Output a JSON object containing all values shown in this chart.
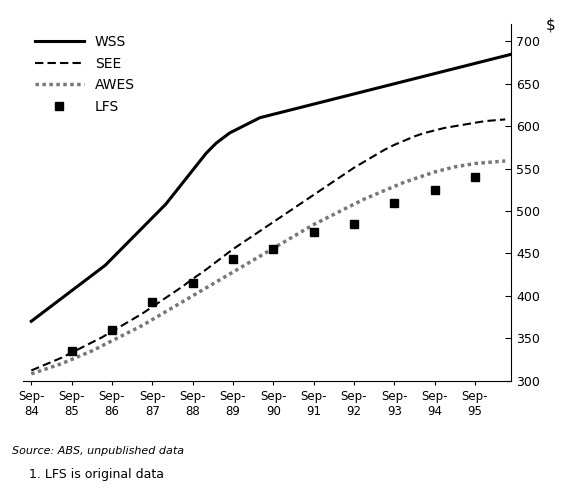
{
  "ylabel_right": "$",
  "ylim": [
    300,
    720
  ],
  "yticks": [
    300,
    350,
    400,
    450,
    500,
    550,
    600,
    650,
    700
  ],
  "x_labels": [
    "Sep-\n84",
    "Sep-\n85",
    "Sep-\n86",
    "Sep-\n87",
    "Sep-\n88",
    "Sep-\n89",
    "Sep-\n90",
    "Sep-\n91",
    "Sep-\n92",
    "Sep-\n93",
    "Sep-\n94",
    "Sep-\n95"
  ],
  "source_text": "Source: ABS, unpublished data",
  "footnote_text": "1. LFS is original data",
  "wss_x": [
    0,
    0.083,
    0.167,
    0.25,
    0.333,
    0.417,
    0.5,
    0.583,
    0.667,
    0.75,
    0.833,
    0.917,
    1.0,
    1.083,
    1.167,
    1.25,
    1.333,
    1.417,
    1.5,
    1.583,
    1.667,
    1.75,
    1.833,
    1.917,
    2.0,
    2.083,
    2.167,
    2.25,
    2.333,
    2.417,
    2.5,
    2.583,
    2.667,
    2.75,
    2.833,
    2.917,
    3.0,
    3.083,
    3.167,
    3.25,
    3.333,
    3.417,
    3.5,
    3.583,
    3.667,
    3.75,
    3.833,
    3.917,
    4.0,
    4.083,
    4.167,
    4.25,
    4.333,
    4.417,
    4.5,
    4.583,
    4.667,
    4.75,
    4.833,
    4.917,
    5.0,
    5.083,
    5.167,
    5.25,
    5.333,
    5.417,
    5.5,
    5.583,
    5.667,
    5.75,
    5.833,
    5.917,
    6.0,
    6.083,
    6.167,
    6.25,
    6.333,
    6.417,
    6.5,
    6.583,
    6.667,
    6.75,
    6.833,
    6.917,
    7.0,
    7.083,
    7.167,
    7.25,
    7.333,
    7.417,
    7.5,
    7.583,
    7.667,
    7.75,
    7.833,
    7.917,
    8.0,
    8.083,
    8.167,
    8.25,
    8.333,
    8.417,
    8.5,
    8.583,
    8.667,
    8.75,
    8.833,
    8.917,
    9.0,
    9.083,
    9.167,
    9.25,
    9.333,
    9.417,
    9.5,
    9.583,
    9.667,
    9.75,
    9.833,
    9.917,
    10.0,
    10.083,
    10.167,
    10.25,
    10.333,
    10.417,
    10.5,
    10.583,
    10.667,
    10.75,
    10.833,
    10.917,
    11.0,
    11.083,
    11.167,
    11.25,
    11.333,
    11.417,
    11.5,
    11.583,
    11.667,
    11.75,
    11.833,
    11.917
  ],
  "wss_y": [
    370,
    373,
    376,
    379,
    382,
    385,
    388,
    391,
    394,
    397,
    400,
    403,
    406,
    409,
    412,
    415,
    418,
    421,
    424,
    427,
    430,
    433,
    436,
    440,
    444,
    448,
    452,
    456,
    460,
    464,
    468,
    472,
    476,
    480,
    484,
    488,
    492,
    496,
    500,
    504,
    508,
    513,
    518,
    523,
    528,
    533,
    538,
    543,
    548,
    553,
    558,
    563,
    568,
    572,
    576,
    580,
    583,
    586,
    589,
    592,
    594,
    596,
    598,
    600,
    602,
    604,
    606,
    608,
    610,
    611,
    612,
    613,
    614,
    615,
    616,
    617,
    618,
    619,
    620,
    621,
    622,
    623,
    624,
    625,
    626,
    627,
    628,
    629,
    630,
    631,
    632,
    633,
    634,
    635,
    636,
    637,
    638,
    639,
    640,
    641,
    642,
    643,
    644,
    645,
    646,
    647,
    648,
    649,
    650,
    651,
    652,
    653,
    654,
    655,
    656,
    657,
    658,
    659,
    660,
    661,
    662,
    663,
    664,
    665,
    666,
    667,
    668,
    669,
    670,
    671,
    672,
    673,
    674,
    675,
    676,
    677,
    678,
    679,
    680,
    681,
    682,
    683,
    684,
    685
  ],
  "see_x": [
    0,
    0.25,
    0.5,
    0.75,
    1.0,
    1.25,
    1.5,
    1.75,
    2.0,
    2.25,
    2.5,
    2.75,
    3.0,
    3.25,
    3.5,
    3.75,
    4.0,
    4.25,
    4.5,
    4.75,
    5.0,
    5.25,
    5.5,
    5.75,
    6.0,
    6.25,
    6.5,
    6.75,
    7.0,
    7.25,
    7.5,
    7.75,
    8.0,
    8.25,
    8.5,
    8.75,
    9.0,
    9.25,
    9.5,
    9.75,
    10.0,
    10.25,
    10.5,
    10.75,
    11.0,
    11.25,
    11.5,
    11.75
  ],
  "see_y": [
    312,
    317,
    322,
    327,
    333,
    339,
    345,
    351,
    358,
    365,
    372,
    379,
    387,
    395,
    403,
    411,
    420,
    428,
    437,
    446,
    455,
    463,
    471,
    479,
    487,
    495,
    503,
    511,
    519,
    527,
    535,
    543,
    551,
    558,
    565,
    572,
    578,
    583,
    588,
    592,
    595,
    598,
    600,
    602,
    604,
    606,
    607,
    608
  ],
  "awes_x": [
    0,
    0.25,
    0.5,
    0.75,
    1.0,
    1.25,
    1.5,
    1.75,
    2.0,
    2.25,
    2.5,
    2.75,
    3.0,
    3.25,
    3.5,
    3.75,
    4.0,
    4.25,
    4.5,
    4.75,
    5.0,
    5.25,
    5.5,
    5.75,
    6.0,
    6.25,
    6.5,
    6.75,
    7.0,
    7.25,
    7.5,
    7.75,
    8.0,
    8.25,
    8.5,
    8.75,
    9.0,
    9.25,
    9.5,
    9.75,
    10.0,
    10.25,
    10.5,
    10.75,
    11.0,
    11.25,
    11.5,
    11.75
  ],
  "awes_y": [
    308,
    312,
    316,
    320,
    325,
    330,
    335,
    341,
    347,
    353,
    359,
    365,
    372,
    379,
    386,
    393,
    400,
    407,
    414,
    421,
    428,
    435,
    442,
    449,
    456,
    463,
    470,
    477,
    484,
    490,
    496,
    502,
    508,
    514,
    519,
    524,
    529,
    534,
    538,
    542,
    546,
    549,
    552,
    554,
    556,
    557,
    558,
    559
  ],
  "lfs_x": [
    1,
    2,
    3,
    4,
    5,
    6,
    7,
    8,
    9,
    10,
    11
  ],
  "lfs_y": [
    335,
    360,
    393,
    415,
    443,
    455,
    475,
    485,
    510,
    525,
    540
  ],
  "background_color": "#ffffff"
}
